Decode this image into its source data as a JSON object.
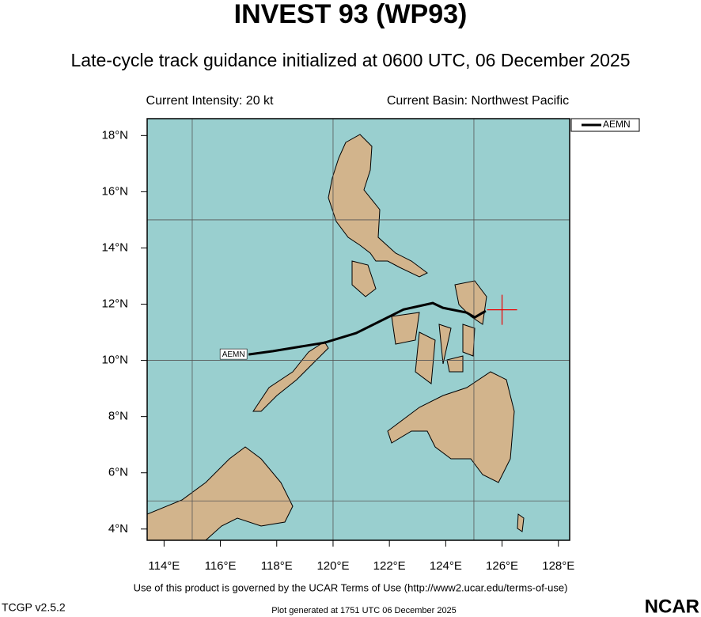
{
  "chart_data": {
    "type": "track_map",
    "title": "INVEST 93 (WP93)",
    "subtitle": "Late-cycle track guidance initialized at 0600 UTC, 06 December 2025",
    "intensity_label": "Current Intensity: 20 kt",
    "basin_label": "Current Basin: Northwest Pacific",
    "xlim": [
      113.4,
      128.4
    ],
    "ylim": [
      3.6,
      18.6
    ],
    "xticks": [
      {
        "value": 114,
        "label": "114°E"
      },
      {
        "value": 116,
        "label": "116°E"
      },
      {
        "value": 118,
        "label": "118°E"
      },
      {
        "value": 120,
        "label": "120°E"
      },
      {
        "value": 122,
        "label": "122°E"
      },
      {
        "value": 124,
        "label": "124°E"
      },
      {
        "value": 126,
        "label": "126°E"
      },
      {
        "value": 128,
        "label": "128°E"
      }
    ],
    "yticks": [
      {
        "value": 4,
        "label": "4°N"
      },
      {
        "value": 6,
        "label": "6°N"
      },
      {
        "value": 8,
        "label": "8°N"
      },
      {
        "value": 10,
        "label": "10°N"
      },
      {
        "value": 12,
        "label": "12°N"
      },
      {
        "value": 14,
        "label": "14°N"
      },
      {
        "value": 16,
        "label": "16°N"
      },
      {
        "value": 18,
        "label": "18°N"
      }
    ],
    "grid_lons": [
      115,
      120,
      125
    ],
    "grid_lats": [
      5,
      10,
      15
    ],
    "current_position": [
      126.0,
      11.8
    ],
    "series": [
      {
        "name": "AEMN",
        "color": "#000000",
        "x": [
          117.0,
          117.87,
          119.7,
          120.82,
          121.94,
          122.5,
          123.54,
          123.9,
          124.74,
          125.03,
          125.42
        ],
        "values": [
          10.21,
          10.33,
          10.63,
          10.97,
          11.53,
          11.81,
          12.04,
          11.87,
          11.7,
          11.53,
          11.76
        ]
      }
    ],
    "footer": "Use of this product is governed by the UCAR Terms of Use (http://www2.ucar.edu/terms-of-use)",
    "version": "TCGP v2.5.2",
    "generated": "Plot generated at 1751 UTC   06 December 2025",
    "logo": "NCAR"
  }
}
